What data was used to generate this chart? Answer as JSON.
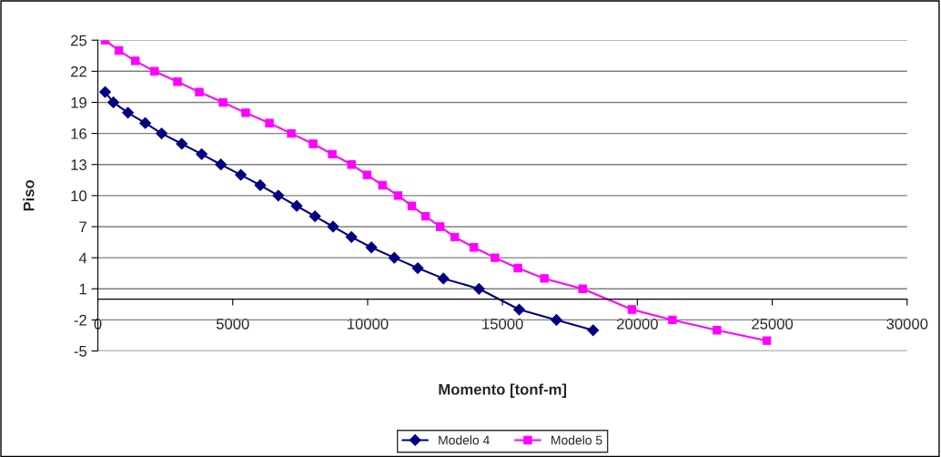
{
  "chart_data": {
    "type": "line",
    "xlabel": "Momento [tonf-m]",
    "ylabel": "Piso",
    "xlim": [
      0,
      30000
    ],
    "xticks": [
      0,
      5000,
      10000,
      15000,
      20000,
      25000,
      30000
    ],
    "ylim": [
      -5,
      25
    ],
    "yticks": [
      -5,
      -2,
      1,
      4,
      7,
      10,
      13,
      16,
      19,
      22,
      25
    ],
    "grid": "y",
    "legend": "bottom",
    "series": [
      {
        "name": "Modelo 4",
        "color": "#000080",
        "marker": "diamond",
        "x": [
          270,
          575,
          1115,
          1757,
          2365,
          3110,
          3850,
          4560,
          5300,
          6020,
          6690,
          7370,
          8050,
          8720,
          9400,
          10140,
          10990,
          11860,
          12810,
          14130,
          15620,
          17000,
          18360
        ],
        "values": [
          20,
          19,
          18,
          17,
          16,
          15,
          14,
          13,
          12,
          11,
          10,
          9,
          8,
          7,
          6,
          5,
          4,
          3,
          2,
          1,
          -1,
          -2,
          -3
        ]
      },
      {
        "name": "Modelo 5",
        "color": "#ff00ff",
        "marker": "square",
        "x": [
          270,
          780,
          1390,
          2100,
          2950,
          3760,
          4640,
          5480,
          6360,
          7170,
          7980,
          8690,
          9400,
          9980,
          10550,
          11130,
          11640,
          12150,
          12690,
          13230,
          13940,
          14720,
          15570,
          16550,
          17970,
          19800,
          21300,
          22950,
          24800
        ],
        "values": [
          25,
          24,
          23,
          22,
          21,
          20,
          19,
          18,
          17,
          16,
          15,
          14,
          13,
          12,
          11,
          10,
          9,
          8,
          7,
          6,
          5,
          4,
          3,
          2,
          1,
          -1,
          -2,
          -3,
          -4
        ]
      }
    ]
  }
}
